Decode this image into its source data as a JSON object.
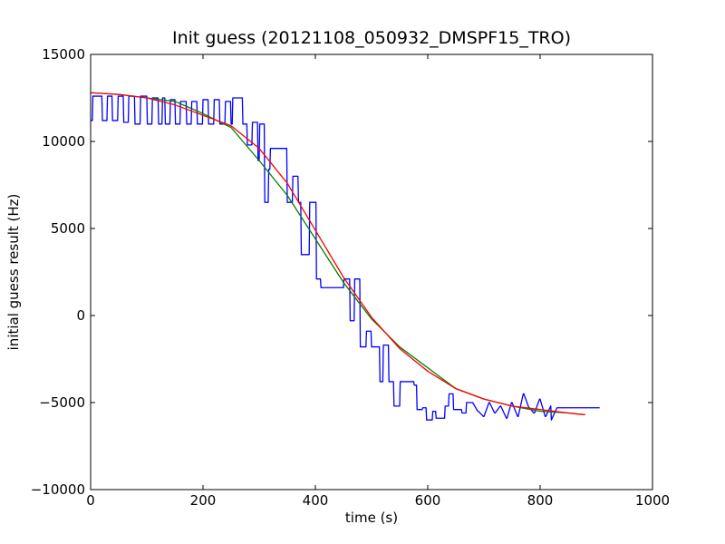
{
  "chart_data": {
    "type": "line",
    "title": "Init guess (20121108_050932_DMSPF15_TRO)",
    "xlabel": "time (s)",
    "ylabel": "initial guess result (Hz)",
    "xlim": [
      0,
      1000
    ],
    "ylim": [
      -10000,
      15000
    ],
    "xticks": [
      0,
      200,
      400,
      600,
      800,
      1000
    ],
    "yticks": [
      -10000,
      -5000,
      0,
      5000,
      10000,
      15000
    ],
    "xtick_labels": [
      "0",
      "200",
      "400",
      "600",
      "800",
      "1000"
    ],
    "ytick_labels": [
      "−10000",
      "−5000",
      "0",
      "5000",
      "10000",
      "15000"
    ],
    "grid": false,
    "series": [
      {
        "color": "#0000ff",
        "x": [
          0,
          3,
          4,
          20,
          21,
          29,
          30,
          38,
          39,
          48,
          49,
          58,
          59,
          67,
          68,
          78,
          79,
          88,
          89,
          100,
          101,
          109,
          110,
          120,
          121,
          127,
          128,
          132,
          133,
          141,
          142,
          150,
          151,
          159,
          160,
          170,
          171,
          179,
          180,
          189,
          190,
          199,
          200,
          209,
          210,
          219,
          220,
          229,
          230,
          239,
          240,
          249,
          250,
          252,
          253,
          270,
          271,
          278,
          279,
          287,
          288,
          297,
          298,
          300,
          301,
          309,
          310,
          316,
          317,
          319,
          320,
          349,
          350,
          359,
          360,
          369,
          370,
          374,
          375,
          389,
          390,
          401,
          402,
          409,
          410,
          450,
          451,
          461,
          462,
          469,
          470,
          479,
          480,
          490,
          491,
          499,
          500,
          509,
          510,
          514,
          515,
          520,
          521,
          530,
          531,
          539,
          540,
          550,
          551,
          575,
          576,
          580,
          581,
          590,
          591,
          597,
          598,
          608,
          609,
          614,
          615,
          630,
          631,
          637,
          638,
          645,
          646,
          660,
          661,
          668,
          669,
          679,
          680,
          689,
          690,
          699,
          700,
          709,
          710,
          719,
          720,
          729,
          730,
          740,
          741,
          749,
          750,
          760,
          761,
          770,
          771,
          780,
          781,
          789,
          790,
          799,
          800,
          809,
          810,
          819,
          820,
          830,
          840,
          870,
          905,
          906
        ],
        "y": [
          11200,
          11200,
          12600,
          12600,
          11200,
          11200,
          12600,
          12600,
          11200,
          11200,
          12600,
          12600,
          11100,
          11100,
          12600,
          12600,
          11000,
          11000,
          12600,
          12600,
          11000,
          11000,
          12500,
          12500,
          11000,
          11000,
          12500,
          12500,
          11000,
          11000,
          12400,
          12400,
          11000,
          11000,
          12300,
          12300,
          11000,
          11000,
          12300,
          12300,
          11000,
          11000,
          12400,
          12400,
          11000,
          11000,
          12400,
          12400,
          11000,
          11000,
          12300,
          12300,
          11000,
          11000,
          12500,
          12500,
          11000,
          11000,
          9800,
          9800,
          11100,
          11100,
          8900,
          8900,
          11000,
          11000,
          6500,
          6500,
          8400,
          8400,
          9600,
          9600,
          6500,
          6500,
          8000,
          8000,
          6500,
          6500,
          3500,
          3500,
          6500,
          6500,
          2100,
          2100,
          1600,
          1600,
          2100,
          2100,
          -300,
          -300,
          2100,
          2100,
          -1800,
          -1800,
          -900,
          -900,
          -1800,
          -1800,
          -1800,
          -1800,
          -3800,
          -3800,
          -1700,
          -1700,
          -3800,
          -3800,
          -5200,
          -5200,
          -3800,
          -3800,
          -4000,
          -4000,
          -5400,
          -5400,
          -5300,
          -5300,
          -6000,
          -6000,
          -5500,
          -5500,
          -5900,
          -5900,
          -5200,
          -5200,
          -4500,
          -4500,
          -5400,
          -5400,
          -5600,
          -5600,
          -5000,
          -5000,
          -5000,
          -5500,
          -5500,
          -5800,
          -5800,
          -5000,
          -5000,
          -5600,
          -5600,
          -5200,
          -5200,
          -5900,
          -5900,
          -5000,
          -5000,
          -5800,
          -5800,
          -4500,
          -4500,
          -5300,
          -5300,
          -5600,
          -5600,
          -4800,
          -4800,
          -5800,
          -5800,
          -5200,
          -6000,
          -5300,
          -5300,
          -5300,
          -5300,
          -5300
        ]
      },
      {
        "color": "#008000",
        "x": [
          0,
          50,
          100,
          150,
          200,
          250,
          300,
          350,
          400,
          450,
          500,
          550,
          600,
          650,
          700,
          750,
          800,
          850,
          880
        ],
        "y": [
          12800,
          12700,
          12500,
          12300,
          11600,
          10800,
          8900,
          6900,
          4400,
          1900,
          -200,
          -1800,
          -3000,
          -4200,
          -4800,
          -5200,
          -5500,
          -5600,
          -5700
        ]
      },
      {
        "color": "#ff0000",
        "x": [
          0,
          50,
          100,
          150,
          200,
          250,
          300,
          350,
          400,
          450,
          500,
          550,
          600,
          650,
          700,
          750,
          800,
          850,
          880
        ],
        "y": [
          12800,
          12700,
          12500,
          12100,
          11500,
          10900,
          9600,
          7600,
          4900,
          2200,
          -100,
          -1900,
          -3200,
          -4200,
          -4800,
          -5200,
          -5400,
          -5600,
          -5700
        ]
      }
    ]
  }
}
